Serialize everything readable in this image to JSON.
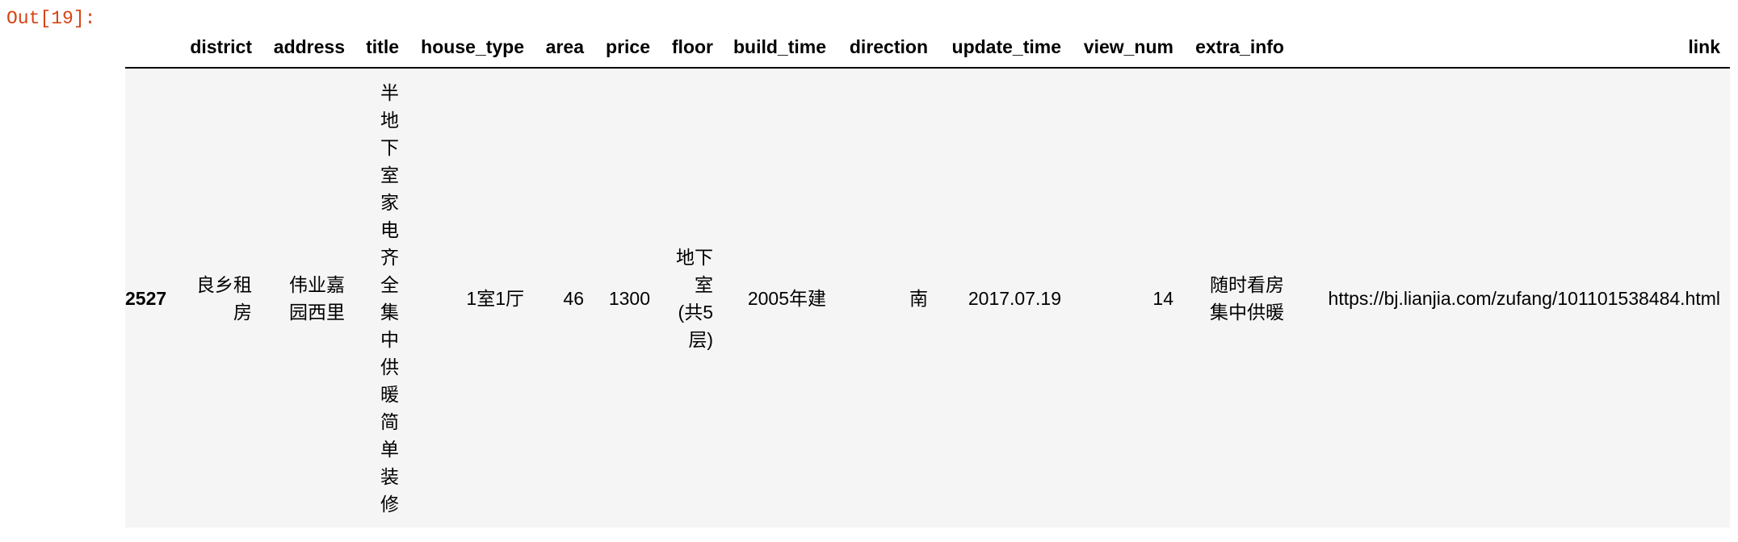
{
  "prompt": "Out[19]:",
  "table": {
    "columns": [
      "district",
      "address",
      "title",
      "house_type",
      "area",
      "price",
      "floor",
      "build_time",
      "direction",
      "update_time",
      "view_num",
      "extra_info",
      "link"
    ],
    "rows": [
      {
        "index": "2527",
        "cells": [
          "良乡租房",
          "伟业嘉园西里",
          "半地下室家电齐全集中供暖简单装修",
          "1室1厅",
          46,
          1300,
          "地下室(共5层)",
          "2005年建",
          "南",
          "2017.07.19",
          14,
          "随时看房集中供暖",
          "https://bj.lianjia.com/zufang/101101538484.html"
        ]
      }
    ]
  }
}
